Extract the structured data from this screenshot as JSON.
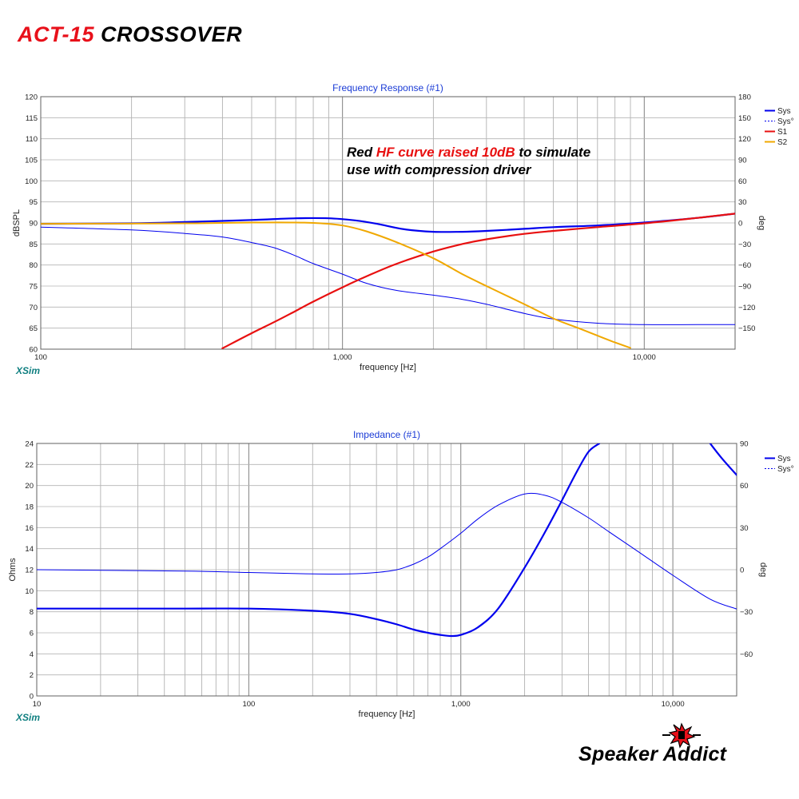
{
  "page": {
    "title_red": "ACT-15",
    "title_black": "CROSSOVER",
    "brand": "Speaker Addict",
    "annotation": {
      "line1_a": "Red ",
      "line1_b": "HF curve raised 10dB",
      "line1_c": " to simulate",
      "line2": "use with compression driver"
    },
    "colors": {
      "sys": "#0000ee",
      "s1": "#e81010",
      "s2": "#f0a800",
      "title_red": "#e8101a",
      "xsim": "#0f7f80"
    }
  },
  "chart_data": [
    {
      "type": "line",
      "title": "Frequency Response (#1)",
      "xlabel": "frequency [Hz]",
      "ylabel": "dBSPL",
      "y2label": "deg",
      "watermark": "XSim",
      "xscale": "log",
      "xlim": [
        100,
        20000
      ],
      "ylim": [
        60,
        120
      ],
      "y2lim": [
        -180,
        180
      ],
      "x_tick_labels": [
        {
          "value": 100,
          "label": "100"
        },
        {
          "value": 1000,
          "label": "1,000"
        },
        {
          "value": 10000,
          "label": "10,000"
        }
      ],
      "y_ticks": [
        60,
        65,
        70,
        75,
        80,
        85,
        90,
        95,
        100,
        105,
        110,
        115,
        120
      ],
      "y2_ticks": [
        -150,
        -120,
        -90,
        -60,
        -30,
        0,
        30,
        60,
        90,
        120,
        150,
        180
      ],
      "grid": true,
      "legend_position": "top-right",
      "legend": [
        {
          "name": "Sys",
          "color": "#0000ee",
          "style": "solid"
        },
        {
          "name": "Sys°",
          "color": "#0000ee",
          "style": "dashed"
        },
        {
          "name": "S1",
          "color": "#e81010",
          "style": "solid"
        },
        {
          "name": "S2",
          "color": "#f0a800",
          "style": "solid"
        }
      ],
      "series": [
        {
          "name": "Sys",
          "axis": "left",
          "color": "#0000ee",
          "width": 2.2,
          "x": [
            100,
            200,
            300,
            500,
            700,
            900,
            1100,
            1300,
            1600,
            2000,
            2500,
            3000,
            4000,
            5000,
            7000,
            10000,
            15000,
            20000
          ],
          "y": [
            89.8,
            89.9,
            90.2,
            90.7,
            91.1,
            91.1,
            90.6,
            89.8,
            88.5,
            87.9,
            87.9,
            88.1,
            88.6,
            89.0,
            89.4,
            90.1,
            91.2,
            92.2
          ]
        },
        {
          "name": "Sys°",
          "axis": "right",
          "color": "#0000ee",
          "width": 1,
          "x": [
            100,
            200,
            300,
            400,
            500,
            600,
            700,
            800,
            1000,
            1200,
            1500,
            2000,
            2500,
            3000,
            4000,
            5000,
            7000,
            10000,
            15000,
            20000
          ],
          "y": [
            -6,
            -10,
            -15,
            -20,
            -28,
            -36,
            -47,
            -58,
            -73,
            -86,
            -96,
            -103,
            -109,
            -116,
            -129,
            -137,
            -143,
            -145,
            -145,
            -145
          ]
        },
        {
          "name": "S1",
          "axis": "left",
          "color": "#e81010",
          "width": 2.2,
          "x": [
            400,
            500,
            600,
            700,
            800,
            1000,
            1200,
            1500,
            2000,
            2500,
            3000,
            4000,
            5000,
            7000,
            10000,
            15000,
            20000
          ],
          "y": [
            60.2,
            63.8,
            66.6,
            69.1,
            71.3,
            74.7,
            77.3,
            80.2,
            83.2,
            85.0,
            86.1,
            87.4,
            88.1,
            89.0,
            89.9,
            91.2,
            92.2
          ]
        },
        {
          "name": "S2",
          "axis": "left",
          "color": "#f0a800",
          "width": 2,
          "x": [
            100,
            300,
            500,
            700,
            850,
            1000,
            1200,
            1500,
            2000,
            2500,
            3000,
            4000,
            5000,
            6000,
            7000,
            8000,
            9000
          ],
          "y": [
            89.8,
            89.9,
            90.1,
            90.1,
            89.9,
            89.4,
            88.0,
            85.5,
            81.6,
            77.8,
            75.0,
            70.7,
            67.3,
            65.1,
            63.2,
            61.6,
            60.3
          ]
        }
      ]
    },
    {
      "type": "line",
      "title": "Impedance (#1)",
      "xlabel": "frequency [Hz]",
      "ylabel": "Ohms",
      "y2label": "deg",
      "watermark": "XSim",
      "xscale": "log",
      "xlim": [
        10,
        20000
      ],
      "ylim": [
        0,
        24
      ],
      "y2lim": [
        -90,
        90
      ],
      "x_tick_labels": [
        {
          "value": 10,
          "label": "10"
        },
        {
          "value": 100,
          "label": "100"
        },
        {
          "value": 1000,
          "label": "1,000"
        },
        {
          "value": 10000,
          "label": "10,000"
        }
      ],
      "y_ticks": [
        0,
        2,
        4,
        6,
        8,
        10,
        12,
        14,
        16,
        18,
        20,
        22,
        24
      ],
      "y2_ticks": [
        -60,
        -30,
        0,
        30,
        60,
        90
      ],
      "grid": true,
      "legend_position": "top-right",
      "legend": [
        {
          "name": "Sys",
          "color": "#0000ee",
          "style": "solid"
        },
        {
          "name": "Sys°",
          "color": "#0000ee",
          "style": "dashed"
        }
      ],
      "series": [
        {
          "name": "Sys",
          "axis": "left",
          "color": "#0000ee",
          "width": 2.2,
          "x": [
            10,
            50,
            100,
            200,
            300,
            400,
            500,
            600,
            700,
            800,
            900,
            1000,
            1200,
            1500,
            2000,
            2500,
            3000,
            3500,
            4000,
            4500
          ],
          "y": [
            8.3,
            8.3,
            8.3,
            8.1,
            7.8,
            7.3,
            6.8,
            6.3,
            6.0,
            5.8,
            5.7,
            5.8,
            6.5,
            8.3,
            12.2,
            15.6,
            18.6,
            21.2,
            23.2,
            24.0
          ]
        },
        {
          "name": "Sys°",
          "axis": "right",
          "color": "#0000ee",
          "width": 1,
          "x": [
            10,
            50,
            100,
            200,
            300,
            400,
            500,
            600,
            700,
            800,
            1000,
            1200,
            1500,
            2000,
            2500,
            3000,
            4000,
            5000,
            7000,
            10000,
            15000,
            20000
          ],
          "y": [
            0,
            -1,
            -2,
            -3,
            -3,
            -2,
            0,
            4,
            9,
            15,
            26,
            36,
            46,
            54,
            53,
            48,
            37,
            27,
            12,
            -4,
            -21,
            -28
          ]
        },
        {
          "name": "Sys (upper)",
          "axis": "left",
          "color": "#0000ee",
          "width": 2.2,
          "x": [
            15000,
            17000,
            20000
          ],
          "y": [
            24.0,
            22.6,
            21.0
          ]
        }
      ]
    }
  ]
}
